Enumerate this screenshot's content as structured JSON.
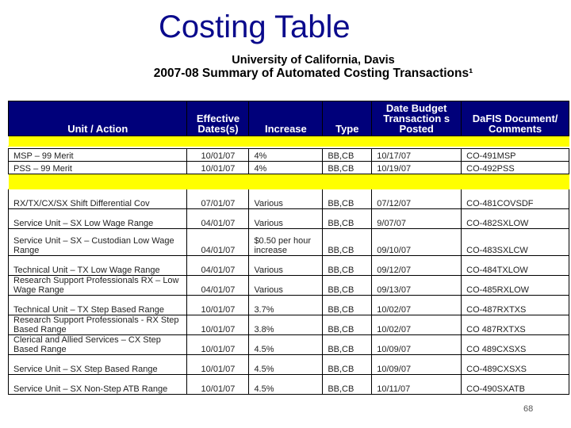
{
  "title": "Costing Table",
  "subtitle1": "University of California, Davis",
  "subtitle2": "2007-08 Summary of Automated Costing Transactions¹",
  "columns": [
    "Unit / Action",
    "Effective Dates(s)",
    "Increase",
    "Type",
    "Date Budget Transaction s Posted",
    "DaFIS Document/ Comments"
  ],
  "group1": [
    [
      "MSP – 99 Merit",
      "10/01/07",
      "4%",
      "BB,CB",
      "10/17/07",
      "CO-491MSP"
    ],
    [
      "PSS – 99 Merit",
      "10/01/07",
      "4%",
      "BB,CB",
      "10/19/07",
      "CO-492PSS"
    ]
  ],
  "group2": [
    [
      "RX/TX/CX/SX  Shift Differential Cov",
      "07/01/07",
      "Various",
      "BB,CB",
      "07/12/07",
      "CO-481COVSDF"
    ],
    [
      "Service Unit – SX Low Wage Range",
      "04/01/07",
      "Various",
      "BB,CB",
      "9/07/07",
      "CO-482SXLOW"
    ],
    [
      "Service Unit – SX – Custodian Low Wage Range",
      "04/01/07",
      "$0.50 per hour increase",
      "BB,CB",
      "09/10/07",
      "CO-483SXLCW"
    ],
    [
      "Technical Unit – TX Low Wage Range",
      "04/01/07",
      "Various",
      "BB,CB",
      "09/12/07",
      "CO-484TXLOW"
    ],
    [
      "Research Support Professionals RX – Low Wage Range",
      "04/01/07",
      "Various",
      "BB,CB",
      "09/13/07",
      "CO-485RXLOW"
    ],
    [
      "Technical Unit – TX Step Based Range",
      "10/01/07",
      "3.7%",
      "BB,CB",
      "10/02/07",
      "CO-487RXTXS"
    ],
    [
      "Research Support Professionals - RX Step Based Range",
      "10/01/07",
      "3.8%",
      "BB,CB",
      "10/02/07",
      "CO 487RXTXS"
    ],
    [
      "Clerical and Allied Services – CX Step Based Range",
      "10/01/07",
      "4.5%",
      "BB,CB",
      "10/09/07",
      "CO 489CXSXS"
    ],
    [
      "Service Unit – SX Step Based Range",
      "10/01/07",
      "4.5%",
      "BB,CB",
      "10/09/07",
      "CO-489CXSXS"
    ],
    [
      "Service Unit – SX Non-Step ATB Range",
      "10/01/07",
      "4.5%",
      "BB,CB",
      "10/11/07",
      "CO-490SXATB"
    ]
  ],
  "page_number": "68",
  "colors": {
    "title": "#0a0a8c",
    "header_bg": "#00007a",
    "highlight": "#ffff00"
  }
}
